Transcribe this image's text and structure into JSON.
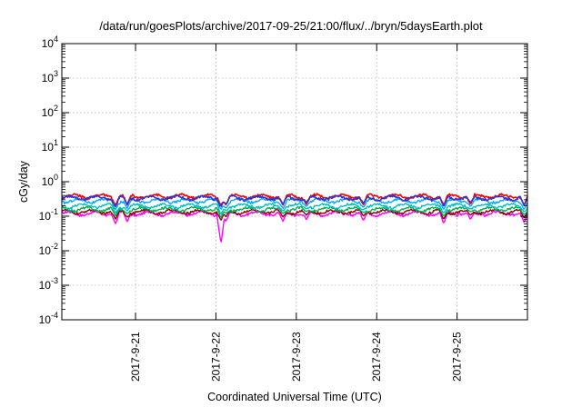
{
  "chart_data": {
    "type": "line",
    "title": "/data/run/goesPlots/archive/2017-09-25/21:00/flux/../bryn/5daysEarth.plot",
    "xlabel": "Coordinated Universal Time (UTC)",
    "ylabel": "cGy/day",
    "y_scale": "log",
    "ylim": [
      0.0001,
      10000
    ],
    "xlim": [
      "2017-09-20T02:00",
      "2017-09-25T21:00"
    ],
    "grid": true,
    "legend": "none",
    "x_ticks": [
      {
        "x": "2017-09-21T00:00",
        "label": "2017-9-21"
      },
      {
        "x": "2017-09-22T00:00",
        "label": "2017-9-22"
      },
      {
        "x": "2017-09-23T00:00",
        "label": "2017-9-23"
      },
      {
        "x": "2017-09-24T00:00",
        "label": "2017-9-24"
      },
      {
        "x": "2017-09-25T00:00",
        "label": "2017-9-25"
      }
    ],
    "y_ticks": [
      {
        "value": 0.0001,
        "base": "10",
        "exp": "-4"
      },
      {
        "value": 0.001,
        "base": "10",
        "exp": "-3"
      },
      {
        "value": 0.01,
        "base": "10",
        "exp": "-2"
      },
      {
        "value": 0.1,
        "base": "10",
        "exp": "-1"
      },
      {
        "value": 1,
        "base": "10",
        "exp": "0"
      },
      {
        "value": 10,
        "base": "10",
        "exp": "1"
      },
      {
        "value": 100,
        "base": "10",
        "exp": "2"
      },
      {
        "value": 1000,
        "base": "10",
        "exp": "3"
      },
      {
        "value": 10000,
        "base": "10",
        "exp": "4"
      }
    ],
    "series": [
      {
        "color": "#ff00ff",
        "baseline": 0.12
      },
      {
        "color": "#8b0000",
        "baseline": 0.135
      },
      {
        "color": "#00b050",
        "baseline": 0.16
      },
      {
        "color": "#00c0c0",
        "baseline": 0.2
      },
      {
        "color": "#00aaff",
        "baseline": 0.28
      },
      {
        "color": "#ff0000",
        "baseline": 0.38
      },
      {
        "color": "#3333cc",
        "baseline": 0.34
      }
    ],
    "dips": [
      {
        "x": "2017-09-20T18:00",
        "min": 0.06
      },
      {
        "x": "2017-09-20T21:30",
        "min": 0.07
      },
      {
        "x": "2017-09-22T01:30",
        "min": 0.016
      },
      {
        "x": "2017-09-22T03:00",
        "min": 0.07
      },
      {
        "x": "2017-09-22T20:00",
        "min": 0.07
      },
      {
        "x": "2017-09-23T03:00",
        "min": 0.08
      },
      {
        "x": "2017-09-23T20:00",
        "min": 0.075
      },
      {
        "x": "2017-09-24T20:00",
        "min": 0.06
      },
      {
        "x": "2017-09-25T04:00",
        "min": 0.08
      },
      {
        "x": "2017-09-25T20:00",
        "min": 0.065
      }
    ]
  }
}
